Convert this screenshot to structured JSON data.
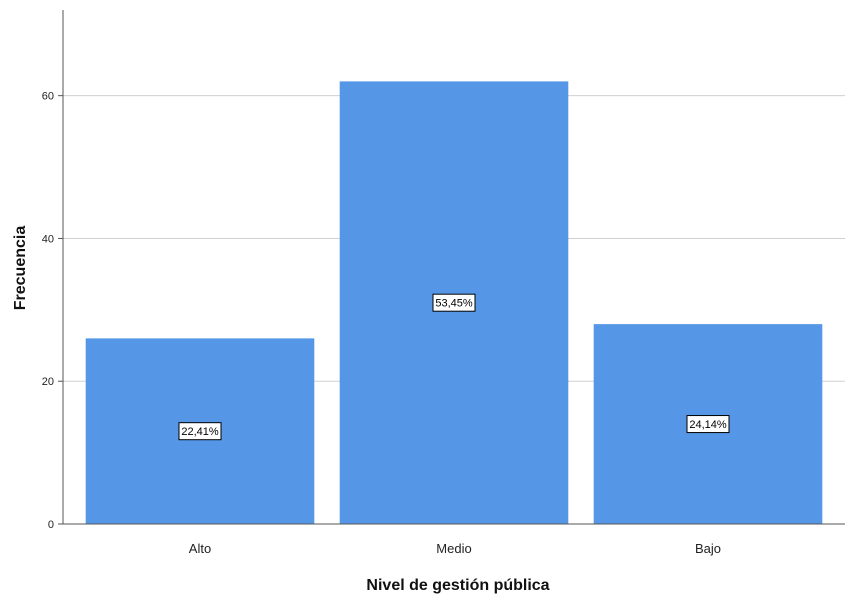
{
  "chart_data": {
    "type": "bar",
    "categories": [
      "Alto",
      "Medio",
      "Bajo"
    ],
    "values": [
      26,
      62,
      28
    ],
    "data_labels": [
      "22,41%",
      "53,45%",
      "24,14%"
    ],
    "title": "",
    "xlabel": "Nivel de gestión pública",
    "ylabel": "Frecuencia",
    "ylim": [
      0,
      72
    ],
    "yticks": [
      0,
      20,
      40,
      60
    ],
    "grid": true,
    "bar_color": "#5596e6",
    "grid_color": "#d0d0d0",
    "axis_color": "#555555"
  }
}
